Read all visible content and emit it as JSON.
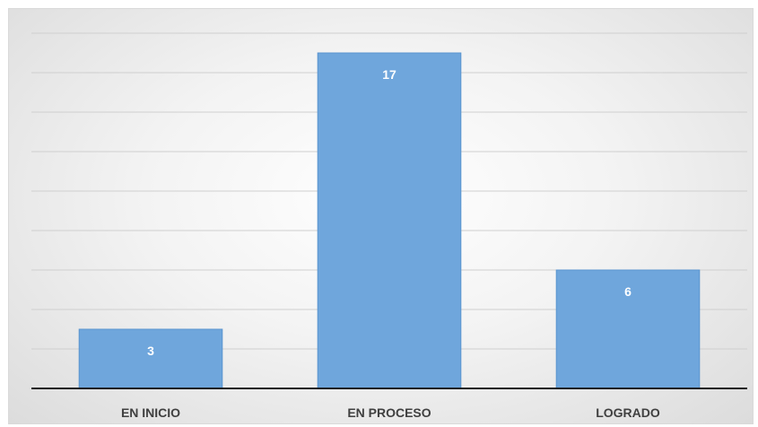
{
  "chart_data": {
    "type": "bar",
    "categories": [
      "EN INICIO",
      "EN PROCESO",
      "LOGRADO"
    ],
    "values": [
      3,
      17,
      6
    ],
    "title": "",
    "xlabel": "",
    "ylabel": "",
    "ylim": [
      0,
      18
    ],
    "gridline_step": 2,
    "grid": true,
    "legend": "none",
    "colors": {
      "bar": "#6fa6dc",
      "value_label": "#ffffff"
    }
  }
}
